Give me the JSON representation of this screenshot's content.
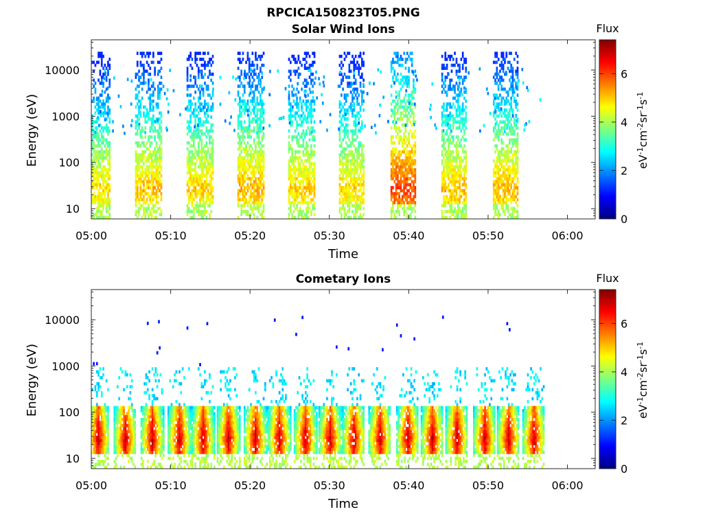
{
  "figure": {
    "title": "RPCICA150823T05.PNG"
  },
  "colormap": [
    "#00007f",
    "#0000ff",
    "#007fff",
    "#00ffff",
    "#7fff7f",
    "#ffff00",
    "#ff7f00",
    "#ff0000",
    "#7f0000"
  ],
  "chart_data": [
    {
      "type": "heatmap",
      "title": "Solar Wind Ions",
      "xlabel": "Time",
      "ylabel": "Energy (eV)",
      "x_ticks": [
        "05:00",
        "05:10",
        "05:20",
        "05:30",
        "05:40",
        "05:50",
        "06:00"
      ],
      "x_tick_minutes": [
        0,
        10,
        20,
        30,
        40,
        50,
        60
      ],
      "xlim_minutes": [
        0,
        63.5
      ],
      "y_scale": "log",
      "y_ticks": [
        "10",
        "100",
        "1000",
        "10000"
      ],
      "y_tick_values": [
        10,
        100,
        1000,
        10000
      ],
      "ylim": [
        6,
        45000
      ],
      "colorbar": {
        "label": "Flux",
        "unit": "eV-1cm-2sr-1s-1",
        "ticks": [
          0,
          2,
          4,
          6
        ],
        "range": [
          0,
          7.4
        ]
      },
      "data_extent_minutes": [
        0,
        57
      ],
      "sweeps": [
        {
          "start": 0,
          "end": 2.2,
          "peak_flux": 5.3
        },
        {
          "start": 5.5,
          "end": 8.8,
          "peak_flux": 5.5
        },
        {
          "start": 12,
          "end": 15.2,
          "peak_flux": 5.4
        },
        {
          "start": 18.4,
          "end": 21.6,
          "peak_flux": 5.6
        },
        {
          "start": 24.8,
          "end": 28,
          "peak_flux": 5.4
        },
        {
          "start": 31.2,
          "end": 34.4,
          "peak_flux": 5.3
        },
        {
          "start": 37.7,
          "end": 40.9,
          "peak_flux": 6.4
        },
        {
          "start": 44.1,
          "end": 47.3,
          "peak_flux": 5.5
        },
        {
          "start": 50.6,
          "end": 53.8,
          "peak_flux": 5.6
        }
      ],
      "peak_energy_ev": 25,
      "max_energy_ev": 22000
    },
    {
      "type": "heatmap",
      "title": "Cometary Ions",
      "xlabel": "Time",
      "ylabel": "Energy (eV)",
      "x_ticks": [
        "05:00",
        "05:10",
        "05:20",
        "05:30",
        "05:40",
        "05:50",
        "06:00"
      ],
      "x_tick_minutes": [
        0,
        10,
        20,
        30,
        40,
        50,
        60
      ],
      "xlim_minutes": [
        0,
        63.5
      ],
      "y_scale": "log",
      "y_ticks": [
        "10",
        "100",
        "1000",
        "10000"
      ],
      "y_tick_values": [
        10,
        100,
        1000,
        10000
      ],
      "ylim": [
        6,
        45000
      ],
      "colorbar": {
        "label": "Flux",
        "unit": "eV-1cm-2sr-1s-1",
        "ticks": [
          0,
          2,
          4,
          6
        ],
        "range": [
          0,
          7.4
        ]
      },
      "data_extent_minutes": [
        0,
        57
      ],
      "sweep_centers_minutes": [
        0.8,
        4.2,
        7.6,
        11,
        14,
        17.2,
        20.6,
        23.6,
        26.9,
        30,
        33,
        36.3,
        39.8,
        42.9,
        46,
        49.5,
        52.5,
        55.7
      ],
      "peak_flux": 7.2,
      "peak_energy_ev": 25,
      "sporadic_hits": [
        {
          "t": 7.0,
          "e": 7800
        },
        {
          "t": 8.4,
          "e": 8500
        },
        {
          "t": 8.5,
          "e": 2300
        },
        {
          "t": 8.2,
          "e": 1800
        },
        {
          "t": 12,
          "e": 6200
        },
        {
          "t": 14.5,
          "e": 7700
        },
        {
          "t": 23,
          "e": 9200
        },
        {
          "t": 26.5,
          "e": 10500
        },
        {
          "t": 25.7,
          "e": 4500
        },
        {
          "t": 38.4,
          "e": 7200
        },
        {
          "t": 38.9,
          "e": 4200
        },
        {
          "t": 40.6,
          "e": 3600
        },
        {
          "t": 44.2,
          "e": 10600
        },
        {
          "t": 52.3,
          "e": 7700
        },
        {
          "t": 52.6,
          "e": 5700
        },
        {
          "t": 30.8,
          "e": 2400
        },
        {
          "t": 32.3,
          "e": 2200
        },
        {
          "t": 13.6,
          "e": 1000
        },
        {
          "t": 0.2,
          "e": 1050
        },
        {
          "t": 0.6,
          "e": 1050
        },
        {
          "t": 36.6,
          "e": 2100
        }
      ]
    }
  ]
}
